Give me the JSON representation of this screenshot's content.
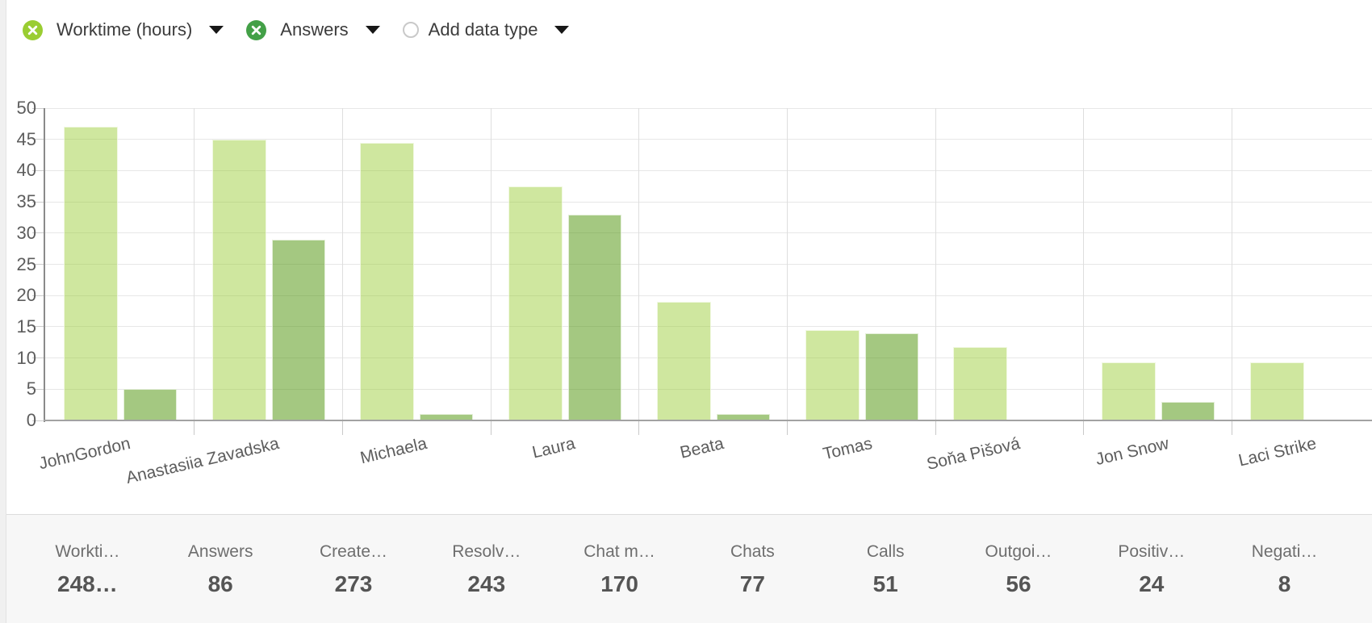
{
  "toolbar": {
    "chips": [
      {
        "label": "Worktime (hours)",
        "icon": "remove-x-circle",
        "color": "#9acd32"
      },
      {
        "label": "Answers",
        "icon": "remove-x-circle",
        "color": "#43a047"
      },
      {
        "label": "Add data type",
        "icon": "empty-circle",
        "color": "#ffffff"
      }
    ]
  },
  "chart_data": {
    "type": "bar",
    "title": "",
    "categories": [
      "JohnGordon",
      "Anastasiia Zavadska",
      "Michaela",
      "Laura",
      "Beata",
      "Tomas",
      "Soňa Pišová",
      "Jon Snow",
      "Laci Strike"
    ],
    "series": [
      {
        "name": "Worktime (hours)",
        "color": "#9acd32",
        "fill": "rgba(154,205,50,0.47)",
        "values": [
          47,
          45,
          44.5,
          37.5,
          19,
          14.5,
          11.7,
          9.3,
          9.3
        ]
      },
      {
        "name": "Answers",
        "color": "#43a047",
        "fill": "rgba(90,155,25,0.55)",
        "values": [
          5,
          29,
          1,
          33,
          1,
          14,
          0,
          3,
          0
        ]
      }
    ],
    "xlabel": "",
    "ylabel": "",
    "ylim": [
      0,
      50
    ],
    "ytick_step": 5,
    "grid": true,
    "legend_position": "top chips"
  },
  "summary": {
    "items": [
      {
        "label": "Workti…",
        "value": "248…"
      },
      {
        "label": "Answers",
        "value": "86"
      },
      {
        "label": "Create…",
        "value": "273"
      },
      {
        "label": "Resolv…",
        "value": "243"
      },
      {
        "label": "Chat m…",
        "value": "170"
      },
      {
        "label": "Chats",
        "value": "77"
      },
      {
        "label": "Calls",
        "value": "51"
      },
      {
        "label": "Outgoi…",
        "value": "56"
      },
      {
        "label": "Positiv…",
        "value": "24"
      },
      {
        "label": "Negati…",
        "value": "8"
      }
    ]
  }
}
